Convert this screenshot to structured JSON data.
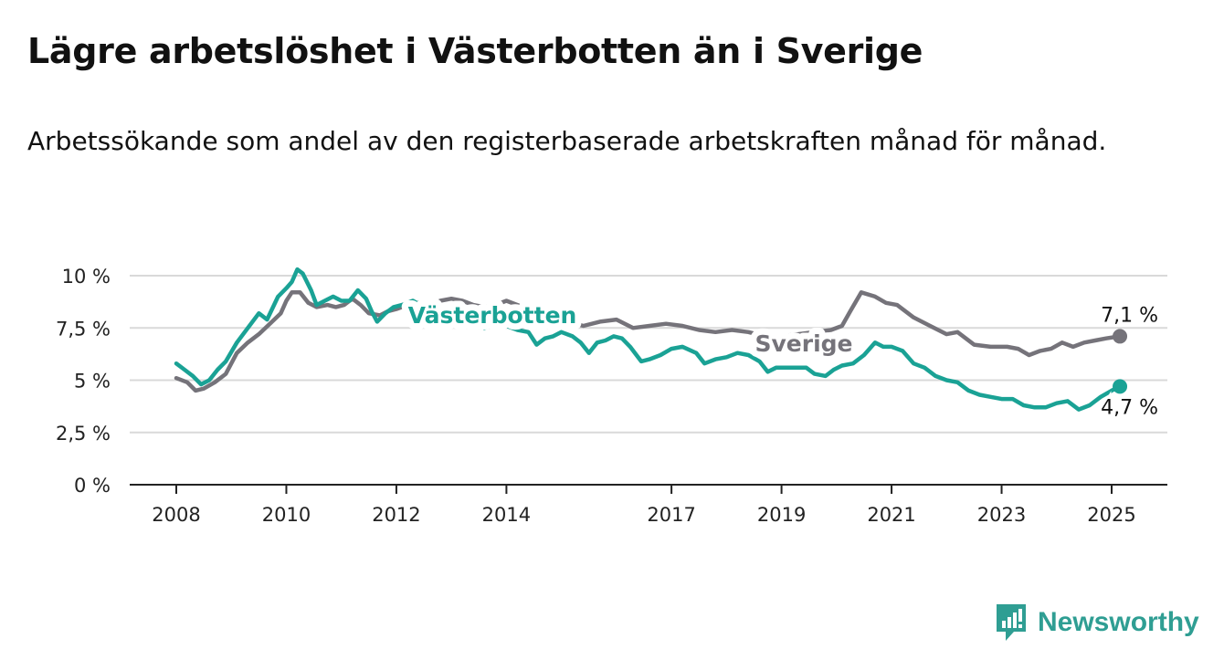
{
  "title": "Lägre arbetslöshet i Västerbotten än i Sverige",
  "subtitle": "Arbetssökande som andel av den registerbaserade arbetskraften månad för månad.",
  "brand": {
    "name": "Newsworthy",
    "color": "#2f9e93",
    "icon": "bar-chart-logo-icon"
  },
  "chart_data": {
    "type": "line",
    "x_ticks": [
      "2008",
      "2010",
      "2012",
      "2014",
      "2017",
      "2019",
      "2021",
      "2023",
      "2025"
    ],
    "y_ticks": [
      "0 %",
      "2,5 %",
      "5 %",
      "7,5 %",
      "10 %"
    ],
    "ylim": [
      0,
      10
    ],
    "grid": true,
    "series": [
      {
        "name": "Sverige",
        "color": "#75737a",
        "end_label": "7,1 %",
        "points": [
          [
            2008.0,
            5.1
          ],
          [
            2008.2,
            4.9
          ],
          [
            2008.35,
            4.5
          ],
          [
            2008.5,
            4.6
          ],
          [
            2008.7,
            4.9
          ],
          [
            2008.9,
            5.3
          ],
          [
            2009.1,
            6.3
          ],
          [
            2009.3,
            6.8
          ],
          [
            2009.5,
            7.2
          ],
          [
            2009.7,
            7.7
          ],
          [
            2009.9,
            8.2
          ],
          [
            2010.0,
            8.8
          ],
          [
            2010.1,
            9.2
          ],
          [
            2010.25,
            9.2
          ],
          [
            2010.4,
            8.7
          ],
          [
            2010.55,
            8.5
          ],
          [
            2010.75,
            8.6
          ],
          [
            2010.9,
            8.5
          ],
          [
            2011.05,
            8.6
          ],
          [
            2011.2,
            8.9
          ],
          [
            2011.35,
            8.6
          ],
          [
            2011.5,
            8.2
          ],
          [
            2011.7,
            8.1
          ],
          [
            2011.85,
            8.3
          ],
          [
            2012.0,
            8.4
          ],
          [
            2012.2,
            8.6
          ],
          [
            2012.4,
            8.7
          ],
          [
            2012.6,
            8.6
          ],
          [
            2012.8,
            8.8
          ],
          [
            2013.0,
            8.9
          ],
          [
            2013.2,
            8.8
          ],
          [
            2013.4,
            8.6
          ],
          [
            2013.6,
            8.5
          ],
          [
            2013.8,
            8.6
          ],
          [
            2014.0,
            8.8
          ],
          [
            2014.2,
            8.6
          ],
          [
            2014.5,
            8.3
          ],
          [
            2014.8,
            8.0
          ],
          [
            2015.1,
            7.8
          ],
          [
            2015.4,
            7.6
          ],
          [
            2015.7,
            7.8
          ],
          [
            2016.0,
            7.9
          ],
          [
            2016.3,
            7.5
          ],
          [
            2016.6,
            7.6
          ],
          [
            2016.9,
            7.7
          ],
          [
            2017.2,
            7.6
          ],
          [
            2017.5,
            7.4
          ],
          [
            2017.8,
            7.3
          ],
          [
            2018.1,
            7.4
          ],
          [
            2018.4,
            7.3
          ],
          [
            2018.7,
            7.1
          ],
          [
            2019.0,
            7.1
          ],
          [
            2019.3,
            7.2
          ],
          [
            2019.6,
            7.3
          ],
          [
            2019.9,
            7.4
          ],
          [
            2020.1,
            7.6
          ],
          [
            2020.25,
            8.3
          ],
          [
            2020.45,
            9.2
          ],
          [
            2020.7,
            9.0
          ],
          [
            2020.9,
            8.7
          ],
          [
            2021.1,
            8.6
          ],
          [
            2021.4,
            8.0
          ],
          [
            2021.7,
            7.6
          ],
          [
            2022.0,
            7.2
          ],
          [
            2022.2,
            7.3
          ],
          [
            2022.5,
            6.7
          ],
          [
            2022.8,
            6.6
          ],
          [
            2023.1,
            6.6
          ],
          [
            2023.3,
            6.5
          ],
          [
            2023.5,
            6.2
          ],
          [
            2023.7,
            6.4
          ],
          [
            2023.9,
            6.5
          ],
          [
            2024.1,
            6.8
          ],
          [
            2024.3,
            6.6
          ],
          [
            2024.5,
            6.8
          ],
          [
            2024.7,
            6.9
          ],
          [
            2024.9,
            7.0
          ],
          [
            2025.15,
            7.1
          ]
        ]
      },
      {
        "name": "Västerbotten",
        "color": "#1aa295",
        "end_label": "4,7 %",
        "points": [
          [
            2008.0,
            5.8
          ],
          [
            2008.15,
            5.5
          ],
          [
            2008.3,
            5.2
          ],
          [
            2008.45,
            4.8
          ],
          [
            2008.6,
            5.0
          ],
          [
            2008.75,
            5.5
          ],
          [
            2008.9,
            5.9
          ],
          [
            2009.1,
            6.8
          ],
          [
            2009.3,
            7.5
          ],
          [
            2009.5,
            8.2
          ],
          [
            2009.65,
            7.9
          ],
          [
            2009.85,
            9.0
          ],
          [
            2010.0,
            9.4
          ],
          [
            2010.1,
            9.7
          ],
          [
            2010.2,
            10.3
          ],
          [
            2010.3,
            10.1
          ],
          [
            2010.45,
            9.3
          ],
          [
            2010.55,
            8.6
          ],
          [
            2010.7,
            8.8
          ],
          [
            2010.85,
            9.0
          ],
          [
            2011.0,
            8.8
          ],
          [
            2011.15,
            8.8
          ],
          [
            2011.3,
            9.3
          ],
          [
            2011.45,
            8.9
          ],
          [
            2011.55,
            8.3
          ],
          [
            2011.65,
            7.8
          ],
          [
            2011.8,
            8.2
          ],
          [
            2011.95,
            8.5
          ],
          [
            2012.1,
            8.6
          ],
          [
            2012.3,
            8.8
          ],
          [
            2012.5,
            8.5
          ],
          [
            2012.8,
            8.1
          ],
          [
            2013.0,
            8.0
          ],
          [
            2013.2,
            7.9
          ],
          [
            2013.4,
            7.8
          ],
          [
            2013.6,
            7.5
          ],
          [
            2013.8,
            7.7
          ],
          [
            2014.0,
            7.6
          ],
          [
            2014.2,
            7.4
          ],
          [
            2014.4,
            7.3
          ],
          [
            2014.55,
            6.7
          ],
          [
            2014.7,
            7.0
          ],
          [
            2014.85,
            7.1
          ],
          [
            2015.0,
            7.3
          ],
          [
            2015.2,
            7.1
          ],
          [
            2015.35,
            6.8
          ],
          [
            2015.5,
            6.3
          ],
          [
            2015.65,
            6.8
          ],
          [
            2015.8,
            6.9
          ],
          [
            2015.95,
            7.1
          ],
          [
            2016.1,
            7.0
          ],
          [
            2016.25,
            6.6
          ],
          [
            2016.45,
            5.9
          ],
          [
            2016.6,
            6.0
          ],
          [
            2016.8,
            6.2
          ],
          [
            2017.0,
            6.5
          ],
          [
            2017.2,
            6.6
          ],
          [
            2017.45,
            6.3
          ],
          [
            2017.6,
            5.8
          ],
          [
            2017.8,
            6.0
          ],
          [
            2018.0,
            6.1
          ],
          [
            2018.2,
            6.3
          ],
          [
            2018.4,
            6.2
          ],
          [
            2018.6,
            5.9
          ],
          [
            2018.75,
            5.4
          ],
          [
            2018.9,
            5.6
          ],
          [
            2019.05,
            5.6
          ],
          [
            2019.25,
            5.6
          ],
          [
            2019.45,
            5.6
          ],
          [
            2019.6,
            5.3
          ],
          [
            2019.8,
            5.2
          ],
          [
            2019.95,
            5.5
          ],
          [
            2020.1,
            5.7
          ],
          [
            2020.3,
            5.8
          ],
          [
            2020.5,
            6.2
          ],
          [
            2020.7,
            6.8
          ],
          [
            2020.85,
            6.6
          ],
          [
            2021.0,
            6.6
          ],
          [
            2021.2,
            6.4
          ],
          [
            2021.4,
            5.8
          ],
          [
            2021.6,
            5.6
          ],
          [
            2021.8,
            5.2
          ],
          [
            2022.0,
            5.0
          ],
          [
            2022.2,
            4.9
          ],
          [
            2022.4,
            4.5
          ],
          [
            2022.6,
            4.3
          ],
          [
            2022.8,
            4.2
          ],
          [
            2023.0,
            4.1
          ],
          [
            2023.2,
            4.1
          ],
          [
            2023.4,
            3.8
          ],
          [
            2023.6,
            3.7
          ],
          [
            2023.8,
            3.7
          ],
          [
            2024.0,
            3.9
          ],
          [
            2024.2,
            4.0
          ],
          [
            2024.4,
            3.6
          ],
          [
            2024.6,
            3.8
          ],
          [
            2024.8,
            4.2
          ],
          [
            2025.0,
            4.5
          ],
          [
            2025.15,
            4.7
          ]
        ]
      }
    ]
  }
}
